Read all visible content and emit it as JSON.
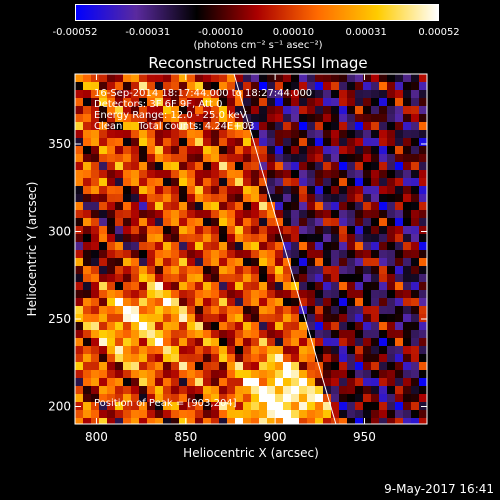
{
  "chart_data": {
    "type": "heatmap",
    "title": "Reconstructed RHESSI Image",
    "xlabel": "Heliocentric X (arcsec)",
    "ylabel": "Heliocentric Y (arcsec)",
    "xlim": [
      788,
      985
    ],
    "ylim": [
      190,
      390
    ],
    "x_ticks": [
      800,
      850,
      900,
      950
    ],
    "y_ticks": [
      200,
      250,
      300,
      350
    ],
    "colorbar": {
      "range": [
        -0.00052,
        0.00052
      ],
      "ticks": [
        "-0.00052",
        "-0.00031",
        "-0.00010",
        "0.00010",
        "0.00031",
        "0.00052"
      ],
      "units": "(photons cm⁻² s⁻¹ asec⁻²)"
    },
    "annotations": {
      "line1": "16-Sep-2014 18:17:44.000 to 18:27:44.000",
      "line2": "Detectors: 3F 6F 9F, Att 0",
      "line3": "Energy Range: 12.0 - 25.0 keV",
      "line4": "Clean     Total counts: 4.24E+03",
      "peak": "Position of Peak = [903,204]"
    },
    "peak_position": [
      903,
      204
    ],
    "limb_line": [
      [
        877,
        390
      ],
      [
        934,
        190
      ]
    ],
    "colormap": [
      "#0000ff",
      "#5a2a9e",
      "#000000",
      "#aa0000",
      "#ff6a00",
      "#ffcc00",
      "#ffffff"
    ]
  },
  "footer": {
    "date": "9-May-2017 16:41"
  }
}
